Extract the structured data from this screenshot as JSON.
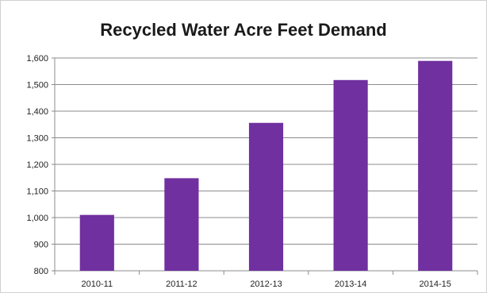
{
  "chart_data": {
    "type": "bar",
    "title": "Recycled Water Acre Feet Demand",
    "categories": [
      "2010-11",
      "2011-12",
      "2012-13",
      "2013-14",
      "2014-15"
    ],
    "values": [
      1010,
      1148,
      1356,
      1517,
      1589
    ],
    "ylim": [
      800,
      1600
    ],
    "yticks": [
      800,
      900,
      1000,
      1100,
      1200,
      1300,
      1400,
      1500,
      1600
    ],
    "ytick_labels": [
      "800",
      "900",
      "1,000",
      "1,100",
      "1,200",
      "1,300",
      "1,400",
      "1,500",
      "1,600"
    ],
    "grid": true,
    "bar_color": "#7030a0",
    "gridline_color": "#8c8c8c"
  }
}
